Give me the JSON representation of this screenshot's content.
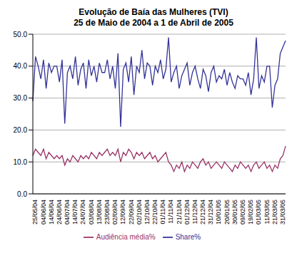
{
  "chart_data": {
    "type": "line",
    "title": "Evolução de Baía das Mulheres (TVI)",
    "subtitle": "25 de Maio de 2004 a 1 de Abril de 2005",
    "categories": [
      "25/05/04",
      null,
      null,
      "04/06/04",
      null,
      null,
      "14/06/04",
      null,
      null,
      "24/06/04",
      null,
      null,
      "04/07/04",
      null,
      null,
      "14/07/04",
      null,
      null,
      "24/07/04",
      null,
      null,
      "03/08/04",
      null,
      null,
      "13/08/04",
      null,
      null,
      "23/08/04",
      null,
      null,
      "02/09/04",
      null,
      null,
      "12/09/04",
      null,
      null,
      "22/09/04",
      null,
      null,
      "02/10/04",
      null,
      null,
      "12/10/04",
      null,
      null,
      "22/10/04",
      null,
      null,
      "01/11/04",
      null,
      null,
      "11/11/04",
      null,
      null,
      "21/11/04",
      null,
      null,
      "01/12/04",
      null,
      null,
      "11/12/04",
      null,
      null,
      "21/12/04",
      null,
      null,
      "31/12/04",
      null,
      null,
      "10/01/05",
      null,
      null,
      "20/01/05",
      null,
      null,
      "30/01/05",
      null,
      null,
      "09/02/05",
      null,
      null,
      "19/02/05",
      null,
      null,
      "01/03/05",
      null,
      null,
      "11/03/05",
      null,
      null,
      "21/03/05",
      null,
      null,
      "31/03/05",
      null,
      null
    ],
    "series": [
      {
        "name": "Audiência média%",
        "color": "#993366",
        "values": [
          12,
          14,
          13,
          12,
          14,
          11,
          13,
          12,
          11,
          12,
          11,
          12,
          9,
          11,
          10,
          12,
          11,
          10,
          12,
          11,
          12,
          11,
          13,
          12,
          11,
          13,
          12,
          13,
          14,
          12,
          13,
          12,
          14,
          10,
          13,
          12,
          14,
          13,
          11,
          13,
          12,
          13,
          11,
          12,
          13,
          11,
          12,
          10,
          11,
          12,
          13,
          10,
          9,
          7,
          9,
          8,
          10,
          7,
          9,
          8,
          10,
          9,
          8,
          10,
          11,
          9,
          10,
          8,
          9,
          10,
          9,
          8,
          10,
          9,
          8,
          7,
          9,
          8,
          10,
          9,
          8,
          9,
          7,
          9,
          10,
          8,
          9,
          10,
          8,
          9,
          7,
          9,
          8,
          11,
          12,
          15
        ]
      },
      {
        "name": "Share%",
        "color": "#333399",
        "values": [
          29,
          43,
          40,
          36,
          42,
          33,
          41,
          38,
          40,
          40,
          35,
          42,
          22,
          38,
          40,
          36,
          43,
          34,
          39,
          41,
          33,
          42,
          37,
          40,
          35,
          41,
          38,
          38,
          42,
          36,
          40,
          33,
          44,
          21,
          39,
          41,
          35,
          43,
          31,
          40,
          38,
          45,
          36,
          41,
          40,
          34,
          40,
          38,
          42,
          36,
          39,
          49,
          35,
          38,
          40,
          33,
          37,
          39,
          41,
          34,
          38,
          40,
          36,
          33,
          39,
          37,
          32,
          38,
          40,
          35,
          37,
          36,
          39,
          34,
          38,
          35,
          33,
          37,
          36,
          36,
          34,
          38,
          31,
          36,
          49,
          33,
          37,
          35,
          40,
          40,
          27,
          34,
          36,
          44,
          46,
          48
        ]
      }
    ],
    "ylim": [
      0,
      50
    ],
    "yticks": [
      {
        "value": 0,
        "label": "0.0"
      },
      {
        "value": 10,
        "label": "10.0"
      },
      {
        "value": 20,
        "label": "20.0"
      },
      {
        "value": 30,
        "label": "30.0"
      },
      {
        "value": 40,
        "label": "40.0"
      },
      {
        "value": 50,
        "label": "50.0"
      }
    ],
    "grid": true,
    "legend": "bottom"
  }
}
